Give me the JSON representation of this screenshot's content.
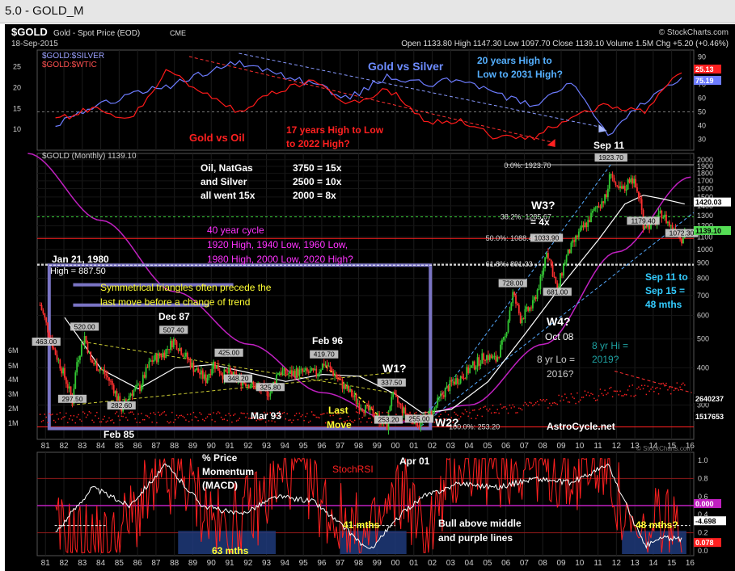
{
  "window_title": "5.0 - GOLD_M",
  "header": {
    "symbol": "$GOLD",
    "description": "Gold - Spot Price (EOD)",
    "exchange": "CME",
    "date": "18-Sep-2015",
    "brand": "© StockCharts.com",
    "ohlc_text": "Open 1133.80  High 1147.30  Low 1097.70  Close 1139.10  Volume 1.5M  Chg +5.20 (+0.46%)",
    "watermark": "© StockCharts.com"
  },
  "colors": {
    "background": "#000000",
    "ratio_silver": "#6d7cff",
    "ratio_oil": "#ff1a1a",
    "sma_white": "#ffffff",
    "cycle_magenta": "#c020c0",
    "rsi": "#ff2020",
    "macd_white": "#ffffff",
    "box": "#7a74c4",
    "up_candle": "#32c832",
    "down_candle": "#ff3030",
    "annotation_white": "#ffffff",
    "annotation_yellow": "#ffff33",
    "annotation_cyan": "#55ccff",
    "annotation_magenta": "#ff33ff",
    "annotation_red": "#ff2020",
    "annotation_teal": "#1fa3a3"
  },
  "top_panel": {
    "legend_silver": "$GOLD:$SILVER",
    "legend_oil": "$GOLD:$WTIC",
    "label_gold_silver": "Gold vs Silver",
    "note_silver": "20 years High to\nLow to 2031 High?",
    "label_gold_oil": "Gold vs Oil",
    "note_oil": "17 years High to Low\nto 2022 High?",
    "left_ticks": [
      "25",
      "20",
      "15",
      "10"
    ],
    "right_ticks": [
      "90",
      "80",
      "70",
      "60",
      "50",
      "40",
      "30"
    ],
    "right_badge_1": "25.13",
    "right_badge_2": "75.19"
  },
  "main_panel": {
    "legend": "$GOLD (Monthly) 1139.10",
    "oil_block": [
      "Oil, NatGas",
      "and Silver",
      "all went 15x"
    ],
    "ratio_block": [
      "3750 = 15x",
      "2500 = 10x",
      "2000 = 8x"
    ],
    "cycle_block": [
      "40 year cycle",
      "1920 High, 1940 Low, 1960 Low,",
      "1980 High, 2000 Low, 2020 High?"
    ],
    "jan1980": "Jan 21, 1980",
    "high_850": "High = 887.50",
    "triangle_note": [
      "Symmetrical triangles often precede the",
      "last move before a change of trend"
    ],
    "fib_0": "0.0%: 1923.70",
    "fib_382": "38.2%: 1285.67",
    "fib_50": "50.0%: 1088.45",
    "fib_618": "61.8%: 891.33",
    "fib_100": "100.0%: 253.20",
    "sep11": "Sep 11",
    "w3": "W3?",
    "w3_4x": "= 4x",
    "w4": "W4?",
    "oct08": "Oct 08",
    "w1": "W1?",
    "w2": "W2?",
    "sep_note": [
      "Sep 11 to",
      "Sep 15 =",
      "48 mths"
    ],
    "hi2019": [
      "8 yr Hi =",
      "2019?"
    ],
    "lo2016": [
      "8 yr Lo =",
      "2016?"
    ],
    "dec87": "Dec 87",
    "feb96": "Feb 96",
    "mar93": "Mar 93",
    "feb85": "Feb 85",
    "last_move": [
      "Last",
      "Move"
    ],
    "astrocycle": "AstroCycle.net",
    "point_labels": [
      {
        "text": "520.00",
        "date": "1983-02",
        "price": 520
      },
      {
        "text": "507.40",
        "date": "1987-12",
        "price": 507.4
      },
      {
        "text": "425.00",
        "date": "1990-12",
        "price": 425
      },
      {
        "text": "419.70",
        "date": "1996-02",
        "price": 419.7
      },
      {
        "text": "337.50",
        "date": "1999-10",
        "price": 337.5
      },
      {
        "text": "348.20",
        "date": "1991-06",
        "price": 348.2
      },
      {
        "text": "325.80",
        "date": "1993-03",
        "price": 325.8
      },
      {
        "text": "297.50",
        "date": "1982-06",
        "price": 297.5
      },
      {
        "text": "282.60",
        "date": "1985-02",
        "price": 282.6
      },
      {
        "text": "253.20",
        "date": "1999-08",
        "price": 253.2
      },
      {
        "text": "255.00",
        "date": "2001-04",
        "price": 255
      },
      {
        "text": "463.00",
        "date": "1981-01",
        "price": 463
      },
      {
        "text": "728.00",
        "date": "2006-05",
        "price": 728
      },
      {
        "text": "681.00",
        "date": "2008-10",
        "price": 681
      },
      {
        "text": "1033.90",
        "date": "2008-03",
        "price": 1033.9
      },
      {
        "text": "1923.70",
        "date": "2011-09",
        "price": 1923.7
      },
      {
        "text": "1179.40",
        "date": "2013-06",
        "price": 1179.4
      },
      {
        "text": "1072.30",
        "date": "2015-07",
        "price": 1072.3
      }
    ],
    "price_axis": [
      "2000",
      "1900",
      "1800",
      "1700",
      "1600",
      "1500",
      "1400",
      "1300",
      "1200",
      "1100",
      "1000",
      "900",
      "800",
      "700",
      "600",
      "500",
      "400",
      "300"
    ],
    "volume_axis": [
      "6M",
      "5M",
      "4M",
      "3M",
      "2M",
      "1M"
    ],
    "right_badges": {
      "sma": "1420.03",
      "close": "1139.10",
      "vol1": "2640237",
      "vol2": "1517653"
    },
    "x_ticks": [
      "81",
      "82",
      "83",
      "84",
      "85",
      "86",
      "87",
      "88",
      "89",
      "90",
      "91",
      "92",
      "93",
      "94",
      "95",
      "96",
      "97",
      "98",
      "99",
      "00",
      "01",
      "02",
      "03",
      "04",
      "05",
      "06",
      "07",
      "08",
      "09",
      "10",
      "11",
      "12",
      "13",
      "14",
      "15",
      "16"
    ]
  },
  "bottom_panel": {
    "label_momentum": [
      "% Price",
      "Momentum",
      "(MACD)"
    ],
    "label_rsi": "StochRSI",
    "label_apr01": "Apr 01",
    "label_bull": [
      "Bull above middle",
      "and purple lines"
    ],
    "label_63": "63 mths",
    "label_41": "41 mths",
    "label_48": "48 mths?",
    "right_ticks": [
      "1.0",
      "0.8",
      "0.6",
      "0.4",
      "0.2",
      "0.0"
    ],
    "badge_zero": "0.000",
    "badge_macd": "-4.698",
    "badge_rsi": "0.078"
  },
  "chart_data": {
    "type": "candlestick",
    "title": "$GOLD Gold - Spot Price (EOD) CME",
    "interval": "Monthly",
    "last_close": 1139.1,
    "x_range": [
      "1980-07",
      "2016-03"
    ],
    "y_scale": "log",
    "y_range": [
      230,
      2100
    ],
    "price_series": {
      "name": "$GOLD",
      "x": [
        "1980-09",
        "1981-01",
        "1981-06",
        "1982-06",
        "1982-09",
        "1983-02",
        "1983-06",
        "1984-02",
        "1984-08",
        "1985-02",
        "1985-08",
        "1986-02",
        "1986-09",
        "1987-06",
        "1987-12",
        "1988-06",
        "1989-01",
        "1989-09",
        "1990-02",
        "1990-08",
        "1990-12",
        "1991-06",
        "1992-02",
        "1992-08",
        "1993-03",
        "1993-08",
        "1994-02",
        "1994-08",
        "1995-03",
        "1995-09",
        "1996-02",
        "1996-08",
        "1997-02",
        "1997-08",
        "1998-01",
        "1998-08",
        "1999-07",
        "1999-10",
        "2000-06",
        "2001-04",
        "2002-01",
        "2002-06",
        "2003-01",
        "2003-08",
        "2004-03",
        "2004-11",
        "2005-06",
        "2005-12",
        "2006-05",
        "2006-10",
        "2007-06",
        "2007-12",
        "2008-03",
        "2008-10",
        "2009-03",
        "2009-12",
        "2010-06",
        "2010-12",
        "2011-06",
        "2011-09",
        "2011-12",
        "2012-06",
        "2012-10",
        "2013-04",
        "2013-06",
        "2013-12",
        "2014-06",
        "2014-12",
        "2015-03",
        "2015-07",
        "2015-09"
      ],
      "values": [
        650,
        560,
        460,
        310,
        420,
        510,
        420,
        390,
        350,
        290,
        330,
        345,
        420,
        450,
        495,
        450,
        400,
        365,
        415,
        380,
        385,
        365,
        352,
        340,
        330,
        390,
        382,
        387,
        385,
        383,
        415,
        385,
        350,
        325,
        300,
        285,
        255,
        325,
        285,
        260,
        285,
        320,
        355,
        375,
        405,
        440,
        425,
        505,
        710,
        585,
        650,
        810,
        1000,
        720,
        920,
        1130,
        1240,
        1400,
        1500,
        1850,
        1580,
        1590,
        1770,
        1460,
        1220,
        1205,
        1320,
        1190,
        1180,
        1090,
        1139
      ]
    },
    "sma_series": {
      "x": [
        "1982-01",
        "1984-01",
        "1986-01",
        "1988-01",
        "1990-01",
        "1992-01",
        "1994-01",
        "1996-01",
        "1998-01",
        "2000-01",
        "2001-06",
        "2003-01",
        "2005-01",
        "2007-01",
        "2009-01",
        "2011-01",
        "2012-06",
        "2013-06",
        "2014-06",
        "2015-09"
      ],
      "values": [
        590,
        395,
        340,
        400,
        410,
        385,
        360,
        380,
        375,
        325,
        282,
        290,
        360,
        520,
        760,
        1080,
        1420,
        1520,
        1480,
        1420
      ]
    },
    "cycle_curve": {
      "x": [
        "1980-01",
        "1984-01",
        "1988-01",
        "1992-01",
        "1996-01",
        "2000-01",
        "2004-01",
        "2008-01",
        "2012-01",
        "2016-01"
      ],
      "values": [
        2100,
        1250,
        720,
        480,
        330,
        262,
        300,
        480,
        980,
        1750
      ]
    },
    "ratio_gold_silver": {
      "x": [
        "1981",
        "1983",
        "1985",
        "1987",
        "1989",
        "1991",
        "1993",
        "1995",
        "1997",
        "1999",
        "2001",
        "2003",
        "2005",
        "2007",
        "2009",
        "2011",
        "2013",
        "2015"
      ],
      "values": [
        40,
        53,
        62,
        68,
        78,
        86,
        78,
        70,
        60,
        76,
        70,
        74,
        63,
        55,
        73,
        32,
        58,
        75
      ]
    },
    "ratio_gold_oil": {
      "x": [
        "1981",
        "1983",
        "1985",
        "1987",
        "1989",
        "1991",
        "1993",
        "1995",
        "1997",
        "1999",
        "2001",
        "2003",
        "2005",
        "2007",
        "2009",
        "2011",
        "2013",
        "2015"
      ],
      "values": [
        12,
        15,
        12,
        24,
        19,
        14,
        19,
        22,
        16,
        20,
        12,
        12,
        8,
        8,
        13,
        16,
        14,
        24
      ]
    },
    "stochrsi": {
      "x": [
        "1981",
        "1984",
        "1986",
        "1988",
        "1990",
        "1992",
        "1994",
        "1996",
        "1998",
        "2000",
        "2001",
        "2003",
        "2005",
        "2007",
        "2009",
        "2011",
        "2012",
        "2013",
        "2014",
        "2015"
      ],
      "values": [
        0.2,
        0.05,
        0.6,
        0.8,
        0.2,
        0.5,
        0.95,
        0.4,
        0.1,
        0.7,
        0.1,
        1.0,
        0.9,
        1.0,
        0.8,
        1.0,
        0.2,
        0.05,
        0.4,
        0.08
      ]
    },
    "macd": {
      "x": [
        "1981",
        "1983",
        "1985",
        "1987",
        "1989",
        "1991",
        "1993",
        "1995",
        "1997",
        "1998",
        "2000",
        "2001",
        "2003",
        "2005",
        "2007",
        "2009",
        "2011",
        "2012",
        "2013",
        "2014",
        "2015"
      ],
      "values": [
        0.2,
        0.7,
        0.5,
        0.95,
        0.5,
        0.4,
        0.6,
        0.55,
        0.2,
        0.0,
        0.45,
        0.6,
        0.75,
        0.7,
        0.8,
        0.75,
        0.95,
        0.5,
        0.05,
        0.15,
        0.12
      ]
    },
    "volume_scale": [
      "1M",
      "2M",
      "3M",
      "4M",
      "5M",
      "6M"
    ]
  }
}
